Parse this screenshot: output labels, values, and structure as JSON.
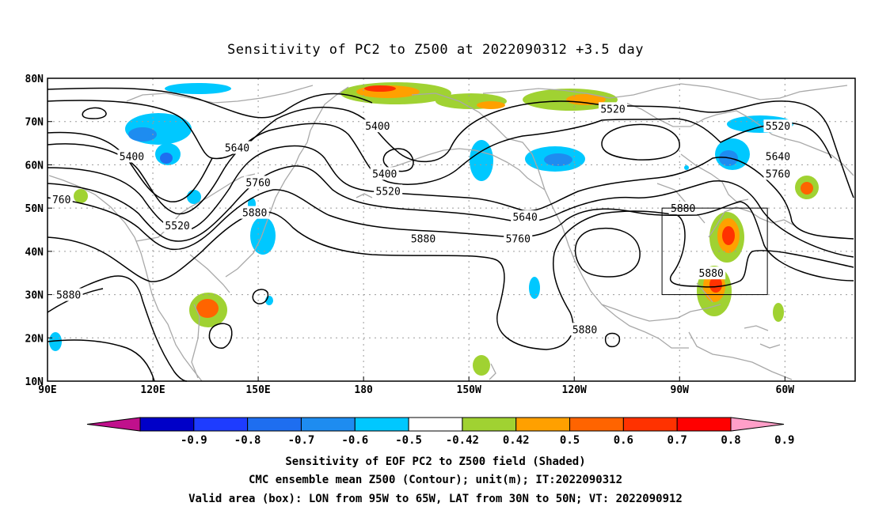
{
  "title": "Sensitivity of PC2 to Z500 at 2022090312 +3.5 day",
  "map": {
    "lon_ticks": [
      "90E",
      "120E",
      "150E",
      "180",
      "150W",
      "120W",
      "90W",
      "60W"
    ],
    "lat_ticks": [
      "80N",
      "70N",
      "60N",
      "50N",
      "40N",
      "30N",
      "20N",
      "10N"
    ],
    "extent": {
      "lon_min": 90,
      "lon_max": 320,
      "lat_min": 10,
      "lat_max": 80
    },
    "grid": "dotted",
    "valid_box": {
      "lon": [
        265,
        295
      ],
      "lat": [
        30,
        50
      ]
    }
  },
  "contour_labels": [
    {
      "text": "5520",
      "lon": 251,
      "lat": 73
    },
    {
      "text": "5400",
      "lon": 184,
      "lat": 69
    },
    {
      "text": "5520",
      "lon": 298,
      "lat": 69
    },
    {
      "text": "5400",
      "lon": 114,
      "lat": 62
    },
    {
      "text": "5640",
      "lon": 144,
      "lat": 64
    },
    {
      "text": "5640",
      "lon": 298,
      "lat": 62
    },
    {
      "text": "5400",
      "lon": 186,
      "lat": 58
    },
    {
      "text": "5760",
      "lon": 298,
      "lat": 58
    },
    {
      "text": "5760",
      "lon": 150,
      "lat": 56
    },
    {
      "text": "5520",
      "lon": 187,
      "lat": 54
    },
    {
      "text": "760",
      "lon": 94,
      "lat": 52
    },
    {
      "text": "5880",
      "lon": 149,
      "lat": 49
    },
    {
      "text": "5880",
      "lon": 271,
      "lat": 50
    },
    {
      "text": "5640",
      "lon": 226,
      "lat": 48
    },
    {
      "text": "5520",
      "lon": 127,
      "lat": 46
    },
    {
      "text": "5880",
      "lon": 197,
      "lat": 43
    },
    {
      "text": "5760",
      "lon": 224,
      "lat": 43
    },
    {
      "text": "5880",
      "lon": 279,
      "lat": 35
    },
    {
      "text": "5880",
      "lon": 96,
      "lat": 30
    },
    {
      "text": "5880",
      "lon": 243,
      "lat": 22
    }
  ],
  "colorbar": {
    "ticks": [
      "-0.9",
      "-0.8",
      "-0.7",
      "-0.6",
      "-0.5",
      "-0.42",
      "0.42",
      "0.5",
      "0.6",
      "0.7",
      "0.8",
      "0.9"
    ],
    "colors": [
      "#c0108c",
      "#0000c8",
      "#1e3cff",
      "#1e6ef0",
      "#1e8cf0",
      "#00c8ff",
      "#ffffff",
      "#a0d232",
      "#ffa000",
      "#ff6400",
      "#ff3200",
      "#ff0000",
      "#ff9fc8"
    ]
  },
  "caption": {
    "line1": "Sensitivity of EOF PC2 to Z500 field (Shaded)",
    "line2": "CMC ensemble mean Z500 (Contour); unit(m); IT:2022090312",
    "line3": "Valid area (box): LON from 95W to 65W, LAT from 30N to 50N; VT: 2022090912"
  }
}
